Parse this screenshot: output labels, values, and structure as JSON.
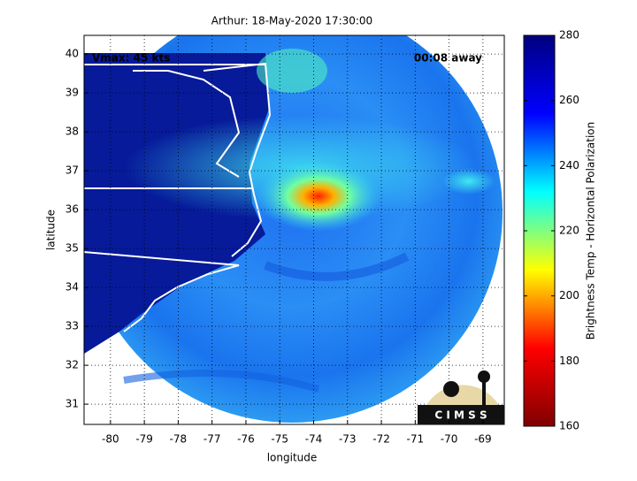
{
  "chart_data": {
    "type": "image",
    "title": "Arthur: 18-May-2020 17:30:00",
    "x_label": "longitude",
    "y_label": "latitude",
    "xlim": [
      -80.78,
      -68.37
    ],
    "xticks": [
      -80,
      -79,
      -78,
      -77,
      -76,
      -75,
      -74,
      -73,
      -72,
      -71,
      -70,
      -69
    ],
    "ylim": [
      30.48,
      40.48
    ],
    "yticks": [
      31,
      32,
      33,
      34,
      35,
      36,
      37,
      38,
      39,
      40
    ],
    "grid": true,
    "annotations": {
      "left": "Vmax: 45 kts",
      "right": "00:08 away"
    },
    "colorbar": {
      "label": "Brightness Temp - Horizontal Polarization",
      "lim": [
        160,
        280
      ],
      "ticks": [
        160,
        180,
        200,
        220,
        240,
        260,
        280
      ],
      "colors": [
        "#800000",
        "#ff0000",
        "#ffff00",
        "#00ffff",
        "#0000ff",
        "#000080"
      ]
    },
    "logo": "C I M S S"
  }
}
